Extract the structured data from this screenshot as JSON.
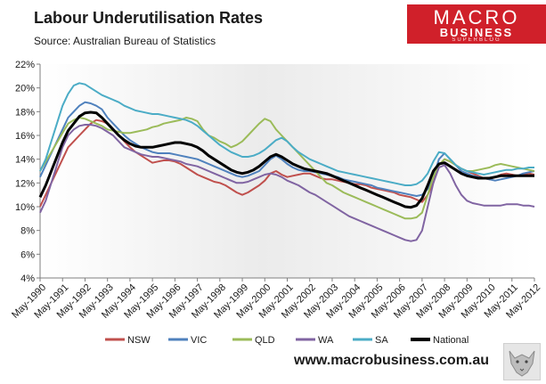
{
  "header": {
    "title": "Labour Underutilisation Rates",
    "source": "Source: Australian Bureau of Statistics"
  },
  "logo": {
    "line1": "MACRO",
    "line2": "BUSINESS",
    "line3": "SUPERBLOG"
  },
  "footer": {
    "url": "www.macrobusiness.com.au",
    "mascot_icon": "wolf-icon"
  },
  "chart_data": {
    "type": "line",
    "title": "Labour Underutilisation Rates",
    "xlabel": "",
    "ylabel": "",
    "ylim": [
      4,
      22
    ],
    "yticks": [
      "4%",
      "6%",
      "8%",
      "10%",
      "12%",
      "14%",
      "16%",
      "18%",
      "20%",
      "22%"
    ],
    "x_start": 1990.333,
    "x_end": 2012.333,
    "x_step": 0.25,
    "xtick_labels": [
      "May-1990",
      "May-1991",
      "May-1992",
      "May-1993",
      "May-1994",
      "May-1995",
      "May-1996",
      "May-1997",
      "May-1998",
      "May-1999",
      "May-2000",
      "May-2001",
      "May-2002",
      "May-2003",
      "May-2004",
      "May-2005",
      "May-2006",
      "May-2007",
      "May-2008",
      "May-2009",
      "May-2010",
      "May-2011",
      "May-2012"
    ],
    "legend_position": "bottom",
    "series": [
      {
        "name": "NSW",
        "color": "#c0504d",
        "width": 2,
        "values": [
          10.0,
          11.0,
          12.0,
          13.0,
          14.0,
          15.0,
          15.5,
          16.0,
          16.5,
          17.0,
          17.3,
          17.2,
          17.0,
          16.5,
          16.0,
          15.5,
          15.0,
          14.6,
          14.3,
          14.0,
          13.7,
          13.8,
          13.9,
          13.9,
          13.8,
          13.6,
          13.3,
          13.0,
          12.7,
          12.5,
          12.3,
          12.1,
          12.0,
          11.8,
          11.5,
          11.2,
          11.0,
          11.2,
          11.5,
          11.8,
          12.2,
          12.8,
          13.0,
          12.7,
          12.5,
          12.6,
          12.7,
          12.8,
          12.8,
          12.6,
          12.4,
          12.3,
          12.3,
          12.2,
          12.1,
          12.0,
          11.9,
          11.9,
          11.8,
          11.6,
          11.5,
          11.4,
          11.3,
          11.2,
          11.0,
          10.9,
          10.8,
          10.6,
          10.4,
          11.0,
          12.0,
          13.5,
          14.0,
          13.8,
          13.5,
          13.2,
          13.0,
          12.8,
          12.6,
          12.4,
          12.3,
          12.5,
          12.7,
          12.8,
          12.7,
          12.6,
          12.7,
          12.8,
          12.7
        ]
      },
      {
        "name": "VIC",
        "color": "#4f81bd",
        "width": 2,
        "values": [
          12.5,
          13.5,
          14.5,
          15.5,
          16.5,
          17.5,
          18.0,
          18.5,
          18.8,
          18.7,
          18.5,
          18.2,
          17.5,
          17.0,
          16.5,
          16.0,
          15.6,
          15.3,
          15.0,
          14.8,
          14.6,
          14.5,
          14.5,
          14.5,
          14.4,
          14.3,
          14.2,
          14.1,
          14.0,
          13.8,
          13.6,
          13.4,
          13.2,
          13.0,
          12.8,
          12.6,
          12.5,
          12.6,
          12.8,
          13.0,
          13.5,
          14.0,
          14.3,
          14.0,
          13.6,
          13.3,
          13.1,
          13.0,
          13.0,
          12.9,
          12.8,
          12.7,
          12.6,
          12.5,
          12.3,
          12.2,
          12.1,
          12.0,
          11.9,
          11.8,
          11.6,
          11.5,
          11.4,
          11.3,
          11.2,
          11.1,
          11.0,
          10.9,
          11.0,
          11.5,
          12.5,
          14.0,
          14.5,
          14.0,
          13.5,
          13.0,
          12.8,
          12.6,
          12.5,
          12.4,
          12.3,
          12.2,
          12.3,
          12.4,
          12.5,
          12.6,
          12.8,
          12.9,
          13.0
        ]
      },
      {
        "name": "QLD",
        "color": "#9bbb59",
        "width": 2,
        "values": [
          13.0,
          13.8,
          14.6,
          15.4,
          16.2,
          17.0,
          17.3,
          17.5,
          17.4,
          17.2,
          17.0,
          16.8,
          16.5,
          16.4,
          16.3,
          16.2,
          16.2,
          16.3,
          16.4,
          16.5,
          16.7,
          16.8,
          17.0,
          17.1,
          17.2,
          17.3,
          17.5,
          17.4,
          17.2,
          16.5,
          16.0,
          15.8,
          15.5,
          15.3,
          15.0,
          15.2,
          15.5,
          16.0,
          16.5,
          17.0,
          17.4,
          17.2,
          16.5,
          16.0,
          15.5,
          15.0,
          14.5,
          14.0,
          13.5,
          13.0,
          12.5,
          12.0,
          11.8,
          11.5,
          11.2,
          11.0,
          10.8,
          10.6,
          10.4,
          10.2,
          10.0,
          9.8,
          9.6,
          9.4,
          9.2,
          9.0,
          9.0,
          9.1,
          9.5,
          11.0,
          12.5,
          13.5,
          14.0,
          13.8,
          13.5,
          13.2,
          13.0,
          13.0,
          13.1,
          13.2,
          13.3,
          13.5,
          13.6,
          13.5,
          13.4,
          13.3,
          13.2,
          13.1,
          13.0
        ]
      },
      {
        "name": "WA",
        "color": "#8064a2",
        "width": 2,
        "values": [
          9.5,
          10.5,
          12.0,
          13.5,
          15.0,
          16.0,
          16.5,
          16.8,
          16.9,
          16.9,
          16.8,
          16.6,
          16.3,
          16.0,
          15.5,
          15.0,
          14.8,
          14.6,
          14.4,
          14.3,
          14.2,
          14.2,
          14.1,
          14.0,
          13.9,
          13.8,
          13.6,
          13.5,
          13.4,
          13.2,
          13.0,
          12.8,
          12.6,
          12.4,
          12.2,
          12.0,
          12.0,
          12.1,
          12.3,
          12.5,
          12.7,
          12.8,
          12.7,
          12.5,
          12.2,
          12.0,
          11.8,
          11.5,
          11.2,
          11.0,
          10.7,
          10.4,
          10.1,
          9.8,
          9.5,
          9.2,
          9.0,
          8.8,
          8.6,
          8.4,
          8.2,
          8.0,
          7.8,
          7.6,
          7.4,
          7.2,
          7.1,
          7.2,
          8.0,
          10.0,
          12.0,
          13.3,
          13.5,
          12.8,
          11.8,
          11.0,
          10.5,
          10.3,
          10.2,
          10.1,
          10.1,
          10.1,
          10.1,
          10.2,
          10.2,
          10.2,
          10.1,
          10.1,
          10.0
        ]
      },
      {
        "name": "SA",
        "color": "#4bacc6",
        "width": 2,
        "values": [
          13.0,
          14.0,
          15.5,
          17.0,
          18.5,
          19.5,
          20.2,
          20.4,
          20.3,
          20.0,
          19.7,
          19.4,
          19.2,
          19.0,
          18.8,
          18.5,
          18.3,
          18.1,
          18.0,
          17.9,
          17.8,
          17.8,
          17.7,
          17.6,
          17.5,
          17.4,
          17.3,
          17.1,
          16.8,
          16.4,
          16.0,
          15.6,
          15.2,
          14.9,
          14.6,
          14.4,
          14.2,
          14.2,
          14.3,
          14.5,
          14.8,
          15.2,
          15.6,
          15.8,
          15.5,
          15.0,
          14.6,
          14.3,
          14.0,
          13.8,
          13.6,
          13.4,
          13.2,
          13.0,
          12.9,
          12.8,
          12.7,
          12.6,
          12.5,
          12.4,
          12.3,
          12.2,
          12.1,
          12.0,
          11.9,
          11.8,
          11.8,
          11.9,
          12.2,
          12.8,
          13.8,
          14.6,
          14.5,
          14.0,
          13.5,
          13.2,
          13.0,
          12.9,
          12.8,
          12.7,
          12.8,
          12.9,
          13.0,
          13.1,
          13.1,
          13.2,
          13.2,
          13.3,
          13.3
        ]
      },
      {
        "name": "National",
        "color": "#000000",
        "width": 3,
        "values": [
          10.8,
          11.8,
          13.0,
          14.2,
          15.4,
          16.4,
          17.0,
          17.6,
          17.9,
          17.95,
          17.9,
          17.5,
          17.0,
          16.5,
          16.0,
          15.6,
          15.3,
          15.1,
          15.0,
          15.0,
          15.0,
          15.1,
          15.2,
          15.3,
          15.4,
          15.4,
          15.3,
          15.2,
          15.0,
          14.7,
          14.3,
          14.0,
          13.7,
          13.4,
          13.1,
          12.9,
          12.8,
          12.9,
          13.1,
          13.4,
          13.8,
          14.2,
          14.4,
          14.2,
          13.9,
          13.6,
          13.4,
          13.2,
          13.1,
          13.0,
          12.9,
          12.8,
          12.6,
          12.4,
          12.2,
          12.0,
          11.8,
          11.6,
          11.4,
          11.2,
          11.0,
          10.8,
          10.6,
          10.4,
          10.2,
          10.0,
          9.95,
          10.1,
          10.7,
          11.8,
          13.0,
          13.6,
          13.7,
          13.4,
          13.1,
          12.8,
          12.6,
          12.5,
          12.4,
          12.4,
          12.4,
          12.5,
          12.6,
          12.6,
          12.6,
          12.6,
          12.6,
          12.6,
          12.6
        ]
      }
    ]
  }
}
